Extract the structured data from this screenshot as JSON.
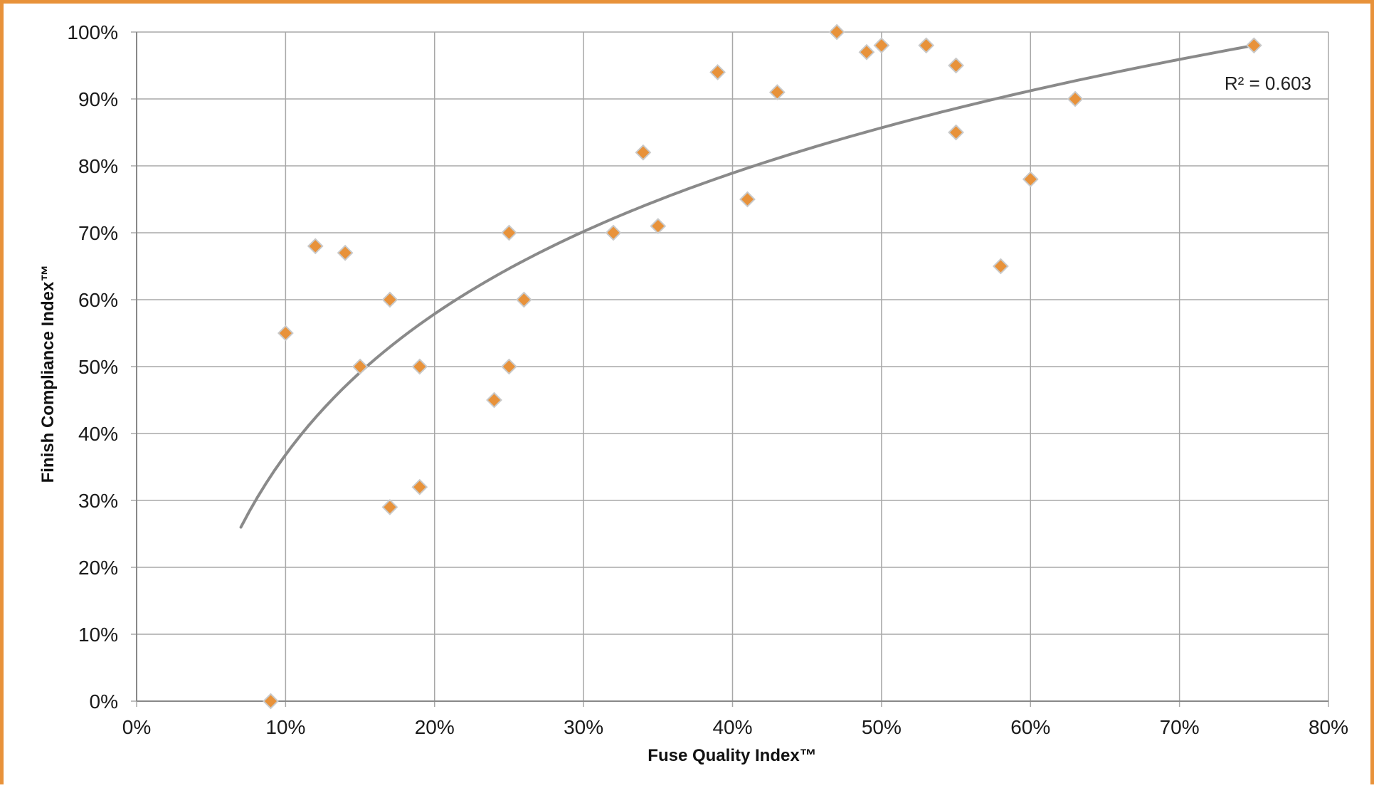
{
  "chart_data": {
    "type": "scatter",
    "xlabel": "Fuse Quality Index™",
    "ylabel": "Finish Compliance Index™",
    "xlim": [
      0,
      80
    ],
    "ylim": [
      0,
      100
    ],
    "x_ticks": [
      "0%",
      "10%",
      "20%",
      "30%",
      "40%",
      "50%",
      "60%",
      "70%",
      "80%"
    ],
    "y_ticks": [
      "0%",
      "10%",
      "20%",
      "30%",
      "40%",
      "50%",
      "60%",
      "70%",
      "80%",
      "90%",
      "100%"
    ],
    "grid": true,
    "marker": "diamond",
    "series": [
      {
        "points": [
          {
            "x": 9,
            "y": 0
          },
          {
            "x": 10,
            "y": 55
          },
          {
            "x": 12,
            "y": 68
          },
          {
            "x": 14,
            "y": 67
          },
          {
            "x": 15,
            "y": 50
          },
          {
            "x": 17,
            "y": 60
          },
          {
            "x": 17,
            "y": 29
          },
          {
            "x": 19,
            "y": 50
          },
          {
            "x": 19,
            "y": 32
          },
          {
            "x": 24,
            "y": 45
          },
          {
            "x": 25,
            "y": 70
          },
          {
            "x": 25,
            "y": 50
          },
          {
            "x": 26,
            "y": 60
          },
          {
            "x": 32,
            "y": 70
          },
          {
            "x": 34,
            "y": 82
          },
          {
            "x": 35,
            "y": 71
          },
          {
            "x": 39,
            "y": 94
          },
          {
            "x": 41,
            "y": 75
          },
          {
            "x": 43,
            "y": 91
          },
          {
            "x": 47,
            "y": 100
          },
          {
            "x": 49,
            "y": 97
          },
          {
            "x": 50,
            "y": 98
          },
          {
            "x": 53,
            "y": 98
          },
          {
            "x": 55,
            "y": 95
          },
          {
            "x": 55,
            "y": 85
          },
          {
            "x": 58,
            "y": 65
          },
          {
            "x": 60,
            "y": 78
          },
          {
            "x": 63,
            "y": 90
          },
          {
            "x": 75,
            "y": 98
          }
        ]
      }
    ],
    "trendline": {
      "type": "logarithmic",
      "x_range": [
        7,
        75
      ],
      "points": [
        {
          "x": 7,
          "y": 26
        },
        {
          "x": 10,
          "y": 36.5
        },
        {
          "x": 15,
          "y": 48.5
        },
        {
          "x": 20,
          "y": 57.5
        },
        {
          "x": 30,
          "y": 70
        },
        {
          "x": 40,
          "y": 78.5
        },
        {
          "x": 50,
          "y": 85.3
        },
        {
          "x": 60,
          "y": 91
        },
        {
          "x": 75,
          "y": 98
        }
      ],
      "r_squared_label": "R² = 0.603"
    },
    "colors": {
      "marker_fill": "#e8923a",
      "marker_stroke": "#c9c9c9",
      "trendline": "#8a8a8a",
      "grid": "#a8a8a8",
      "frame_border": "#e8923a"
    }
  }
}
